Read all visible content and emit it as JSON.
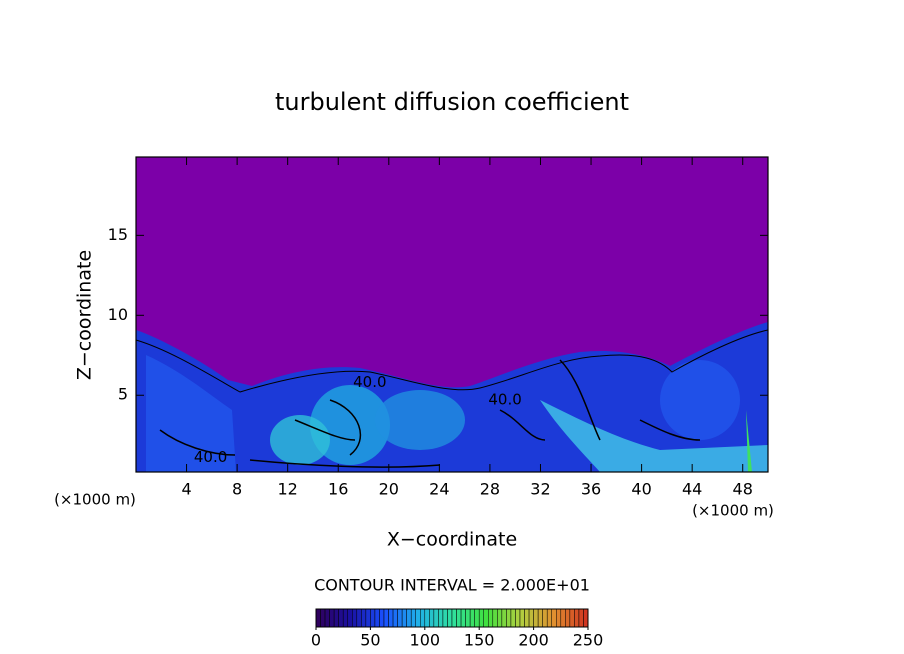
{
  "chart_data": {
    "type": "contour",
    "title": "turbulent diffusion coefficient",
    "x_label": "X−coordinate",
    "y_label": "Z−coordinate",
    "x_unit": "(×1000 m)",
    "xlim": [
      0,
      50
    ],
    "xticks": [
      4,
      8,
      12,
      16,
      20,
      24,
      28,
      32,
      36,
      40,
      44,
      48
    ],
    "ylim": [
      0.2,
      19.9
    ],
    "yticks": [
      5,
      10,
      15
    ],
    "contour_interval": "CONTOUR INTERVAL = 2.000E+01",
    "contour_labels": [
      {
        "label": "40.0",
        "x": 5.9,
        "y": 1.1
      },
      {
        "label": "40.0",
        "x": 18.5,
        "y": 5.8
      },
      {
        "label": "40.0",
        "x": 29.2,
        "y": 4.7
      }
    ],
    "colorbar": {
      "lim": [
        0,
        250
      ],
      "ticks": [
        0,
        50,
        100,
        150,
        200,
        250
      ],
      "colors": [
        "#30005a",
        "#1a10a0",
        "#1a50ff",
        "#20b0e8",
        "#30e0a0",
        "#40e040",
        "#b0d040",
        "#e09030",
        "#d03020"
      ]
    }
  }
}
